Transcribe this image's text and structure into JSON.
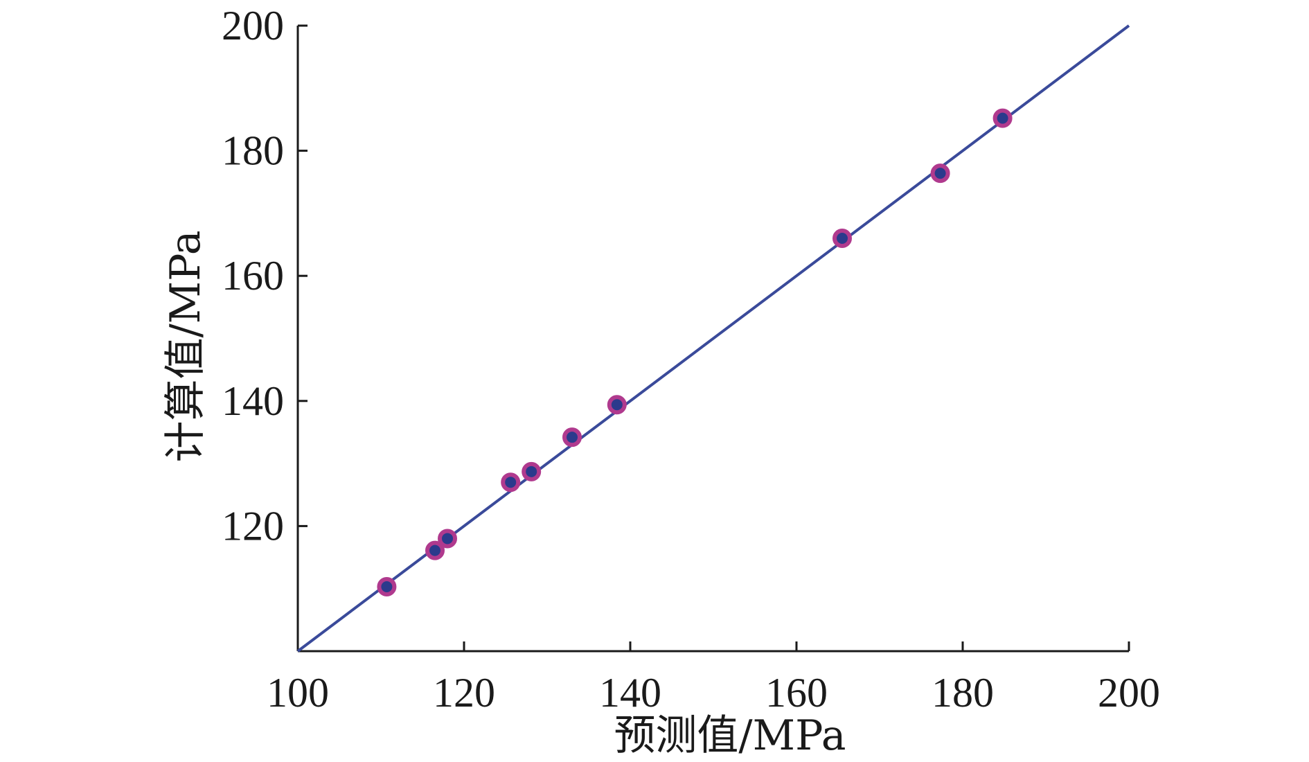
{
  "chart_data": {
    "type": "scatter",
    "title": "",
    "xlabel": "预测值/MPa",
    "ylabel": "计算值/MPa",
    "xlim": [
      100,
      200
    ],
    "ylim": [
      100,
      200
    ],
    "xticks": [
      "100",
      "120",
      "140",
      "160",
      "180",
      "200"
    ],
    "yticks": [
      "120",
      "140",
      "160",
      "180",
      "200"
    ],
    "grid": false,
    "legend": "none",
    "series": [
      {
        "marker_fill": "#2b3a8c",
        "marker_edge": "#b03a8e",
        "points": [
          {
            "x": 110.7,
            "y": 110.3
          },
          {
            "x": 116.5,
            "y": 116.1
          },
          {
            "x": 118.0,
            "y": 118.0
          },
          {
            "x": 125.6,
            "y": 127.0
          },
          {
            "x": 128.1,
            "y": 128.7
          },
          {
            "x": 133.0,
            "y": 134.2
          },
          {
            "x": 138.4,
            "y": 139.4
          },
          {
            "x": 165.5,
            "y": 166.0
          },
          {
            "x": 177.3,
            "y": 176.4
          },
          {
            "x": 184.8,
            "y": 185.2
          }
        ]
      }
    ],
    "reference_line": {
      "from": [
        100,
        100
      ],
      "to": [
        200,
        200
      ],
      "color": "#3a4a9a"
    },
    "axis_color": "#1a1a1a"
  }
}
